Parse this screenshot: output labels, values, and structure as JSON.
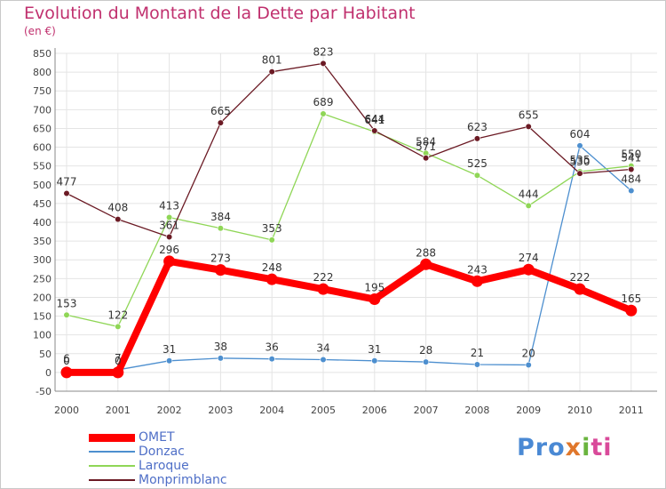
{
  "chart_data": {
    "type": "line",
    "title": "Evolution du Montant de la Dette par Habitant",
    "subtitle": "(en €)",
    "categories": [
      "2000",
      "2001",
      "2002",
      "2003",
      "2004",
      "2005",
      "2006",
      "2007",
      "2008",
      "2009",
      "2010",
      "2011"
    ],
    "ylim": [
      -50,
      850
    ],
    "yticks": [
      -50,
      0,
      50,
      100,
      150,
      200,
      250,
      300,
      350,
      400,
      450,
      500,
      550,
      600,
      650,
      700,
      750,
      800,
      850
    ],
    "grid": true,
    "legend_position": "bottom-left",
    "series": [
      {
        "name": "OMET",
        "color": "#ff0000",
        "values": [
          0,
          0,
          296,
          273,
          248,
          222,
          195,
          288,
          243,
          274,
          222,
          165
        ]
      },
      {
        "name": "Donzac",
        "color": "#4d8fcf",
        "values": [
          6,
          7,
          31,
          38,
          36,
          34,
          31,
          28,
          21,
          20,
          604,
          484
        ]
      },
      {
        "name": "Laroque",
        "color": "#8fd656",
        "values": [
          153,
          122,
          413,
          384,
          353,
          689,
          641,
          584,
          525,
          444,
          535,
          550
        ]
      },
      {
        "name": "Monprimblanc",
        "color": "#6b1a24",
        "values": [
          477,
          408,
          361,
          665,
          801,
          823,
          644,
          571,
          623,
          655,
          530,
          541
        ]
      }
    ]
  },
  "logo": {
    "text_parts": [
      "Pro",
      "x",
      "i",
      "ti"
    ]
  }
}
